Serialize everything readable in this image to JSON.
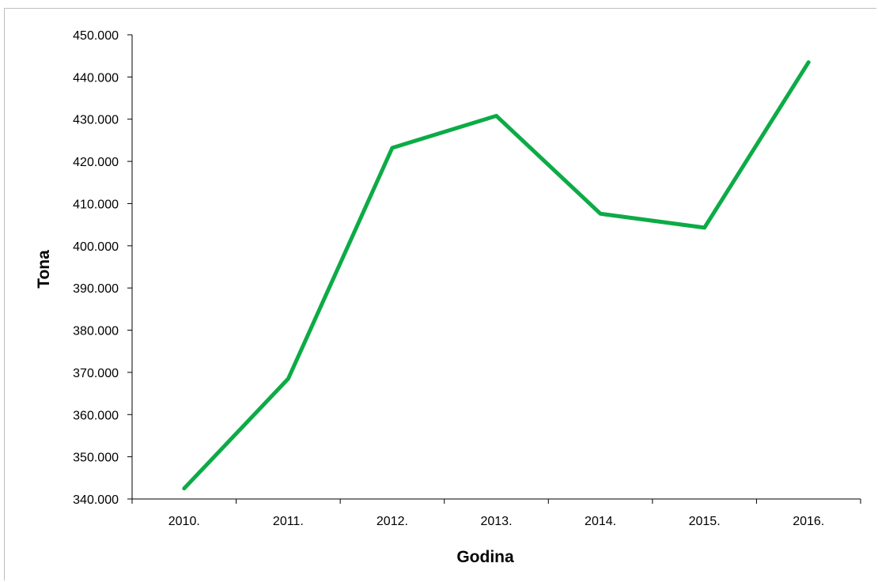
{
  "chart_data": {
    "type": "line",
    "title": "",
    "xlabel": "Godina",
    "ylabel": "Tona",
    "categories": [
      "2010.",
      "2011.",
      "2012.",
      "2013.",
      "2014.",
      "2015.",
      "2016."
    ],
    "series": [
      {
        "values": [
          342500,
          368500,
          423200,
          430800,
          407600,
          404300,
          443500
        ],
        "color": "#0cab46"
      }
    ],
    "ylim": [
      340000,
      450000
    ],
    "yticks": [
      340000,
      350000,
      360000,
      370000,
      380000,
      390000,
      400000,
      410000,
      420000,
      430000,
      440000,
      450000
    ],
    "ytick_labels": [
      "340.000",
      "350.000",
      "360.000",
      "370.000",
      "380.000",
      "390.000",
      "400.000",
      "410.000",
      "420.000",
      "430.000",
      "440.000",
      "450.000"
    ],
    "grid": false,
    "legend": "none"
  }
}
